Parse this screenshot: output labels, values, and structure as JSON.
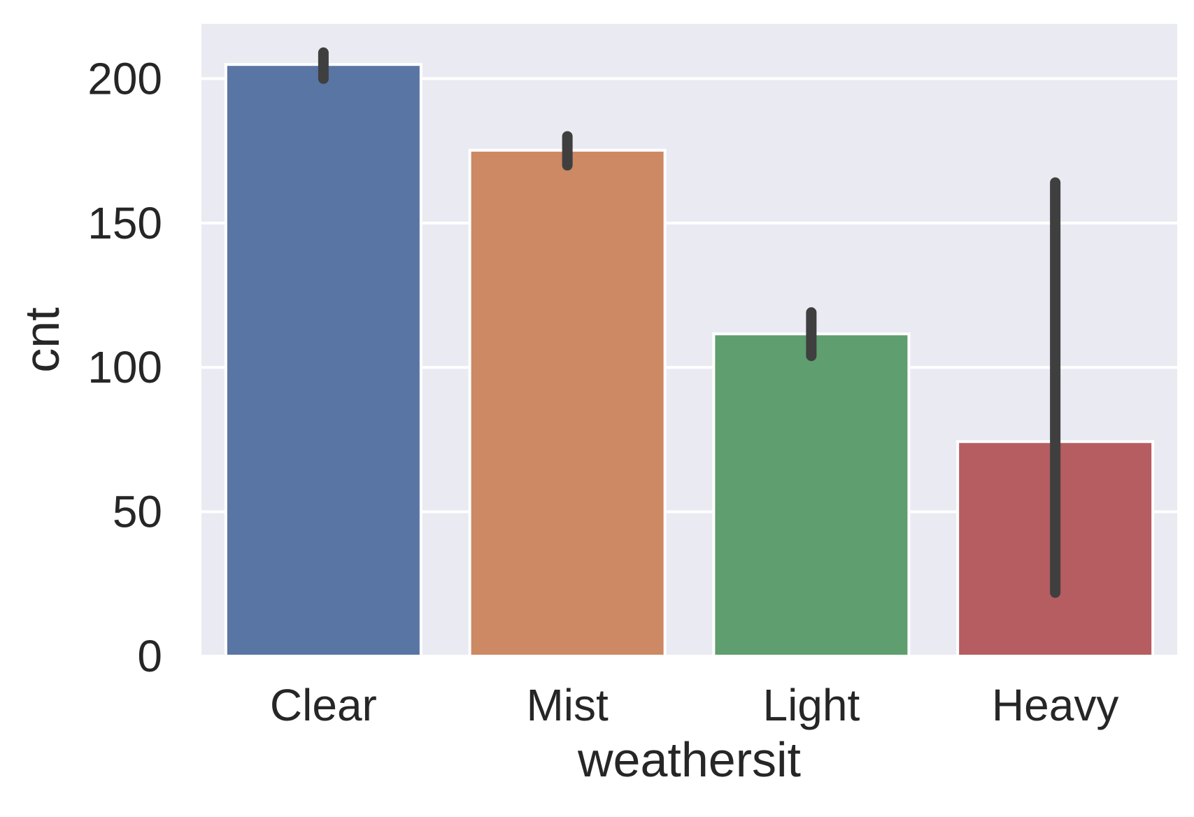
{
  "chart_data": {
    "type": "bar",
    "title": "",
    "xlabel": "weathersit",
    "ylabel": "cnt",
    "categories": [
      "Clear",
      "Mist",
      "Light",
      "Heavy"
    ],
    "values": [
      204.9,
      175.2,
      111.6,
      74.3
    ],
    "error_bars": [
      [
        200,
        209
      ],
      [
        170,
        180
      ],
      [
        104,
        119
      ],
      [
        22,
        164
      ]
    ],
    "ylim": [
      0,
      219
    ],
    "yticks": [
      0,
      50,
      100,
      150,
      200
    ],
    "grid": true,
    "legend": "none",
    "colors": {
      "bars": [
        "#5975a4",
        "#cc8963",
        "#5f9e6e",
        "#b55d60"
      ],
      "plot_background": "#eaeaf2",
      "grid": "#ffffff",
      "error_bar": "#3f3f3f",
      "text": "#262626"
    }
  }
}
